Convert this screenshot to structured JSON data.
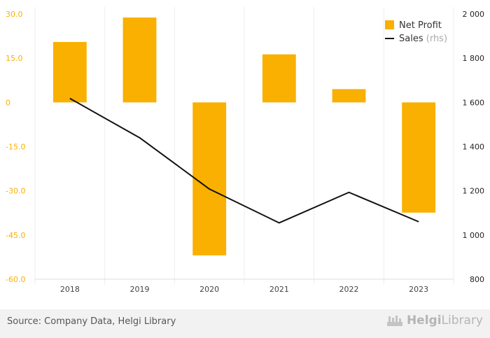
{
  "chart_data": {
    "type": "bar+line",
    "categories": [
      "2018",
      "2019",
      "2020",
      "2021",
      "2022",
      "2023"
    ],
    "series": [
      {
        "name": "Net Profit",
        "type": "bar",
        "axis": "left",
        "values": [
          20.5,
          28.8,
          -51.9,
          16.3,
          4.5,
          -37.4
        ]
      },
      {
        "name": "Sales",
        "name_suffix": "(rhs)",
        "type": "line",
        "axis": "right",
        "values": [
          1618,
          1440,
          1208,
          1055,
          1193,
          1060
        ]
      }
    ],
    "yaxis_left": {
      "min": -60,
      "max": 30,
      "ticks": [
        "30.0",
        "15.0",
        "0",
        "-15.0",
        "-30.0",
        "-45.0",
        "-60.0"
      ]
    },
    "yaxis_right": {
      "min": 800,
      "max": 2000,
      "ticks": [
        "2 000",
        "1 800",
        "1 600",
        "1 400",
        "1 200",
        "1 000",
        "800"
      ]
    },
    "legend_position": "top-right",
    "grid": "vertical category separators"
  },
  "colors": {
    "bar": "#f9b000",
    "line": "#111111",
    "left_axis": "#f9b000",
    "right_axis": "#222222"
  },
  "footer": {
    "source": "Source: Company Data, Helgi Library",
    "brand_a": "Helgi",
    "brand_b": "Library"
  }
}
